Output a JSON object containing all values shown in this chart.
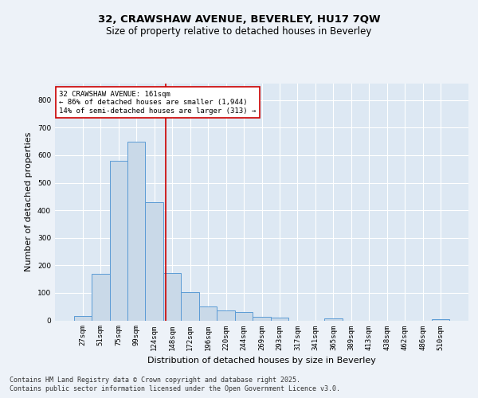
{
  "title_line1": "32, CRAWSHAW AVENUE, BEVERLEY, HU17 7QW",
  "title_line2": "Size of property relative to detached houses in Beverley",
  "xlabel": "Distribution of detached houses by size in Beverley",
  "ylabel": "Number of detached properties",
  "bar_color": "#c9d9e8",
  "bar_edge_color": "#5b9bd5",
  "background_color": "#dde8f3",
  "grid_color": "#ffffff",
  "categories": [
    "27sqm",
    "51sqm",
    "75sqm",
    "99sqm",
    "124sqm",
    "148sqm",
    "172sqm",
    "196sqm",
    "220sqm",
    "244sqm",
    "269sqm",
    "293sqm",
    "317sqm",
    "341sqm",
    "365sqm",
    "389sqm",
    "413sqm",
    "438sqm",
    "462sqm",
    "486sqm",
    "510sqm"
  ],
  "values": [
    17,
    168,
    581,
    648,
    430,
    172,
    103,
    51,
    37,
    29,
    13,
    10,
    0,
    0,
    7,
    0,
    0,
    0,
    0,
    0,
    5
  ],
  "ylim": [
    0,
    860
  ],
  "yticks": [
    0,
    100,
    200,
    300,
    400,
    500,
    600,
    700,
    800
  ],
  "property_line_x": 4.65,
  "annotation_text": "32 CRAWSHAW AVENUE: 161sqm\n← 86% of detached houses are smaller (1,944)\n14% of semi-detached houses are larger (313) →",
  "annotation_box_color": "#ffffff",
  "annotation_box_edge": "#cc0000",
  "vline_color": "#cc0000",
  "footer_line1": "Contains HM Land Registry data © Crown copyright and database right 2025.",
  "footer_line2": "Contains public sector information licensed under the Open Government Licence v3.0.",
  "title_fontsize": 9.5,
  "subtitle_fontsize": 8.5,
  "tick_fontsize": 6.5,
  "ylabel_fontsize": 8,
  "xlabel_fontsize": 8,
  "annotation_fontsize": 6.5,
  "footer_fontsize": 6
}
